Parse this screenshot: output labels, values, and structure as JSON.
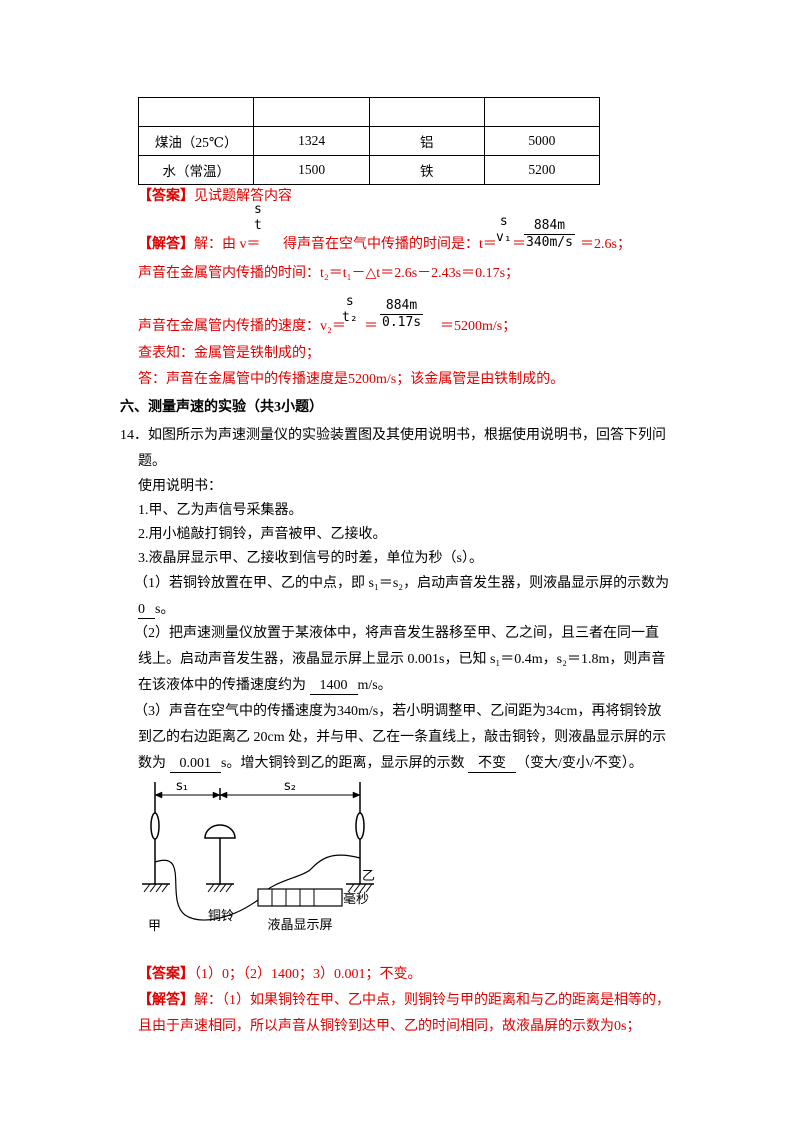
{
  "table": {
    "rows": [
      [
        "煤油（25℃）",
        "1324",
        "铝",
        "5000"
      ],
      [
        "水（常温）",
        "1500",
        "铁",
        "5200"
      ]
    ]
  },
  "answer_1": {
    "label": "【答案】",
    "text": "见试题解答内容"
  },
  "solution_1": {
    "label": "【解答】",
    "line_1": [
      "解：由 v＝",
      "得声音在空气中传播的时间是：t＝",
      "＝",
      "＝2.6s；"
    ],
    "fraction_1": {
      "num": "s",
      "den": "t"
    },
    "fraction_2": {
      "num": "s",
      "den": "v₁"
    },
    "fraction_3": {
      "num": "884m",
      "den": "340m/s"
    },
    "line_2": "声音在金属管内传播的时间：t₂＝t₁－△t＝2.6s－2.43s＝0.17s；",
    "line_3": [
      "声音在金属管内传播的速度：v₂＝",
      "＝",
      "＝5200m/s；"
    ],
    "fraction_4": {
      "num": "s",
      "den": "t₂"
    },
    "fraction_5": {
      "num": "884m",
      "den": "0.17s"
    },
    "line_4": "查表知：金属管是铁制成的；",
    "line_5": "答：声音在金属管中的传播速度是5200m/s；该金属管是由铁制成的。"
  },
  "section_heading": "六、测量声速的实验（共3小题）",
  "question_14": {
    "stem": [
      "14．如图所示为声速测量仪的实验装置图及其使用说明书，根据使用说明书，回答下列问",
      "题。"
    ],
    "manual_title": "使用说明书：",
    "manual": [
      "1.甲、乙为声信号采集器。",
      "2.用小槌敲打铜铃，声音被甲、乙接收。",
      "3.液晶屏显示甲、乙接收到信号的时差，单位为秒（s）。"
    ],
    "part_1": {
      "lines": [
        "（1）若铜铃放置在甲、乙的中点，即 s₁＝s₂，启动声音发生器，则液晶显示屏的示数为"
      ],
      "answer": "0",
      "after": "s。"
    },
    "part_2": {
      "lines": [
        "（2）把声速测量仪放置于某液体中，将声音发生器移至甲、乙之间，且三者在同一直",
        "线上。启动声音发生器，液晶显示屏上显示 0.001s，已知 s₁＝0.4m，s₂＝1.8m，则声音",
        "在该液体中的传播速度约为"
      ],
      "answer": "1400",
      "after": "m/s。"
    },
    "part_3": {
      "lines": [
        "（3）声音在空气中的传播速度为340m/s，若小明调整甲、乙间距为34cm，再将铜铃放",
        "到乙的右边距离乙 20cm 处，并与甲、乙在一条直线上，敲击铜铃，则液晶显示屏的示",
        "数为"
      ],
      "answer_1": "0.001",
      "middle": "s。增大铜铃到乙的距离，显示屏的示数",
      "answer_2": "不变",
      "after": "（变大/变小/不变）。"
    },
    "figure": {
      "s1": "s₁",
      "s2": "s₂",
      "left": "甲",
      "bell": "铜铃",
      "right": "乙",
      "unit": "毫秒",
      "screen": "液晶显示屏"
    }
  },
  "answer_2": {
    "label": "【答案】",
    "text": "（1）0；（2）1400；3）0.001；不变。"
  },
  "solution_2": {
    "label": "【解答】",
    "lines": [
      "解：（1）如果铜铃在甲、乙中点，则铜铃与甲的距离和与乙的距离是相等的，",
      "且由于声速相同，所以声音从铜铃到达甲、乙的时间相同，故液晶屏的示数为0s；"
    ]
  }
}
